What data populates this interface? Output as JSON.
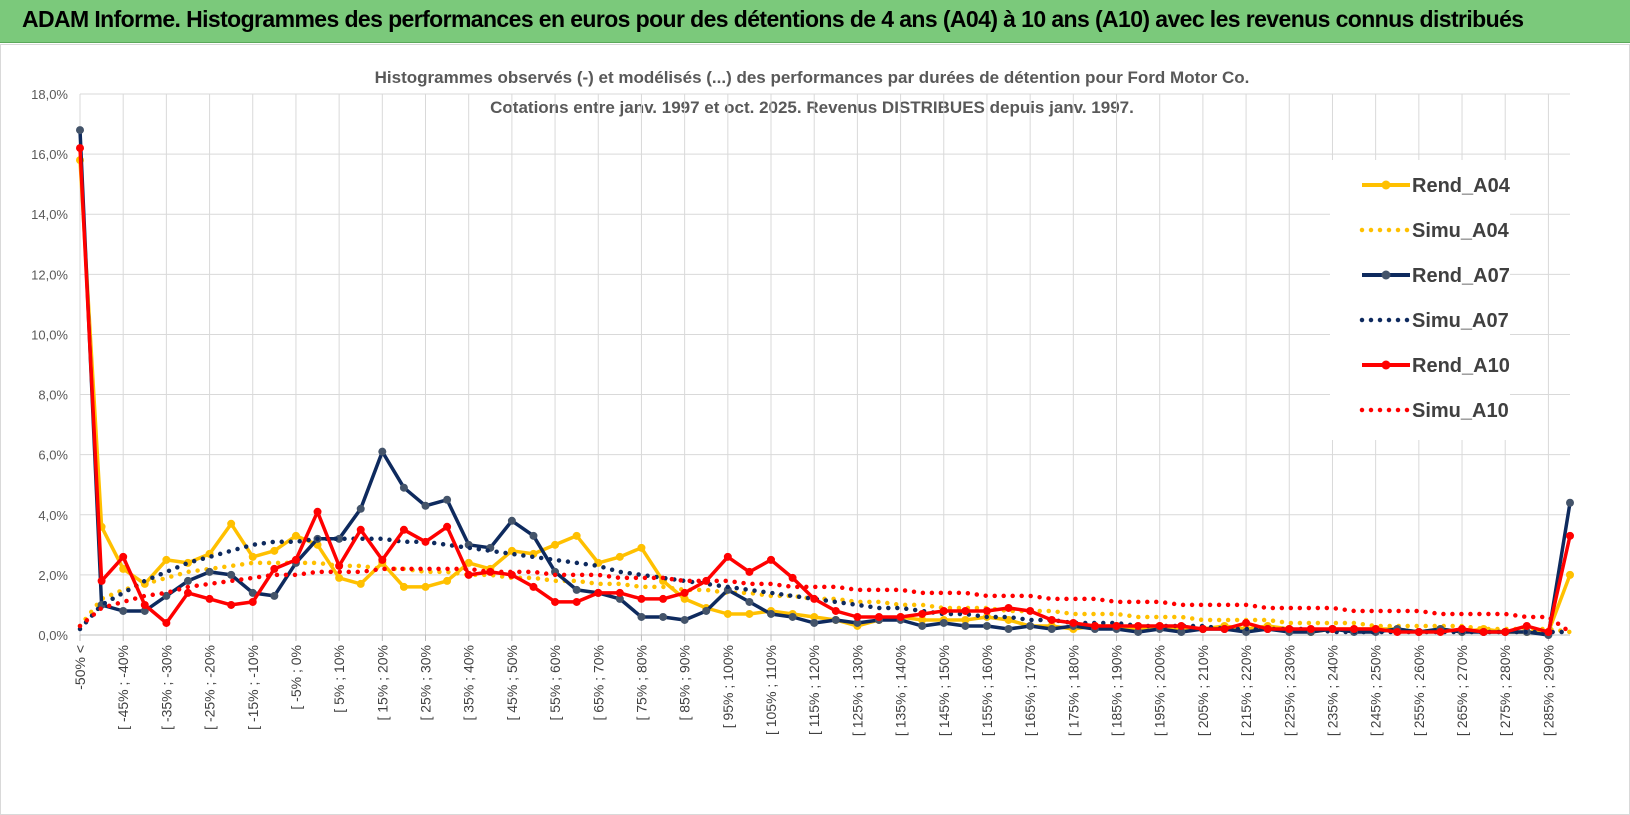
{
  "header": {
    "title": "ADAM Informe. Histogrammes des performances en euros pour des détentions de 4 ans (A04) à 10 ans (A10) avec les revenus connus distribués"
  },
  "chart_data": {
    "type": "line",
    "title": "Histogrammes observés (-) et modélisés (...) des performances par durées de détention pour Ford Motor Co.",
    "subtitle": "Cotations entre janv. 1997 et oct. 2025.  Revenus DISTRIBUES depuis janv. 1997.",
    "ylim": [
      0,
      18
    ],
    "yticks": [
      "0,0%",
      "2,0%",
      "4,0%",
      "6,0%",
      "8,0%",
      "10,0%",
      "12,0%",
      "14,0%",
      "16,0%",
      "18,0%"
    ],
    "grid": true,
    "legend_position": "right",
    "x_labels": [
      "-50% <",
      "[ -45% ; -40%",
      "[ -35% ; -30%",
      "[ -25% ; -20%",
      "[ -15% ; -10%",
      "[ -5% ; 0%",
      "[ 5% ; 10%",
      "[ 15% ; 20%",
      "[ 25% ; 30%",
      "[ 35% ; 40%",
      "[ 45% ; 50%",
      "[ 55% ; 60%",
      "[ 65% ; 70%",
      "[ 75% ; 80%",
      "[ 85% ; 90%",
      "[ 95% ; 100%",
      "[ 105% ; 110%",
      "[ 115% ; 120%",
      "[ 125% ; 130%",
      "[ 135% ; 140%",
      "[ 145% ; 150%",
      "[ 155% ; 160%",
      "[ 165% ; 170%",
      "[ 175% ; 180%",
      "[ 185% ; 190%",
      "[ 195% ; 200%",
      "[ 205% ; 210%",
      "[ 215% ; 220%",
      "[ 225% ; 230%",
      "[ 235% ; 240%",
      "[ 245% ; 250%",
      "[ 255% ; 260%",
      "[ 265% ; 270%",
      "[ 275% ; 280%",
      "[ 285% ; 290%"
    ],
    "n_points": 70,
    "series": [
      {
        "name": "Rend_A04",
        "style": "solid",
        "color": "#FFC000",
        "values": [
          15.8,
          3.6,
          2.2,
          1.7,
          2.5,
          2.4,
          2.7,
          3.7,
          2.6,
          2.8,
          3.3,
          3.0,
          1.9,
          1.7,
          2.4,
          1.6,
          1.6,
          1.8,
          2.4,
          2.2,
          2.8,
          2.7,
          3.0,
          3.3,
          2.4,
          2.6,
          2.9,
          1.8,
          1.2,
          0.9,
          0.7,
          0.7,
          0.8,
          0.7,
          0.6,
          0.5,
          0.3,
          0.5,
          0.6,
          0.5,
          0.5,
          0.5,
          0.6,
          0.5,
          0.3,
          0.3,
          0.2,
          0.3,
          0.3,
          0.2,
          0.3,
          0.2,
          0.2,
          0.3,
          0.2,
          0.3,
          0.2,
          0.1,
          0.2,
          0.2,
          0.2,
          0.2,
          0.1,
          0.2,
          0.1,
          0.2,
          0.1,
          0.1,
          0.1,
          2.0
        ]
      },
      {
        "name": "Simu_A04",
        "style": "dotted",
        "color": "#FFC000",
        "values": [
          0.3,
          1.2,
          1.5,
          1.7,
          1.9,
          2.1,
          2.2,
          2.3,
          2.4,
          2.4,
          2.4,
          2.4,
          2.3,
          2.3,
          2.2,
          2.2,
          2.1,
          2.1,
          2.0,
          2.0,
          1.9,
          1.9,
          1.8,
          1.8,
          1.7,
          1.7,
          1.6,
          1.6,
          1.5,
          1.5,
          1.4,
          1.4,
          1.3,
          1.3,
          1.2,
          1.2,
          1.1,
          1.1,
          1.0,
          1.0,
          0.9,
          0.9,
          0.9,
          0.8,
          0.8,
          0.8,
          0.7,
          0.7,
          0.7,
          0.6,
          0.6,
          0.6,
          0.5,
          0.5,
          0.5,
          0.5,
          0.4,
          0.4,
          0.4,
          0.4,
          0.3,
          0.3,
          0.3,
          0.3,
          0.3,
          0.2,
          0.2,
          0.2,
          0.2,
          0.1
        ]
      },
      {
        "name": "Rend_A07",
        "style": "solid",
        "color": "#0E2A5E",
        "values": [
          16.8,
          1.0,
          0.8,
          0.8,
          1.3,
          1.8,
          2.1,
          2.0,
          1.4,
          1.3,
          2.4,
          3.2,
          3.2,
          4.2,
          6.1,
          4.9,
          4.3,
          4.5,
          3.0,
          2.9,
          3.8,
          3.3,
          2.1,
          1.5,
          1.4,
          1.2,
          0.6,
          0.6,
          0.5,
          0.8,
          1.5,
          1.1,
          0.7,
          0.6,
          0.4,
          0.5,
          0.4,
          0.5,
          0.5,
          0.3,
          0.4,
          0.3,
          0.3,
          0.2,
          0.3,
          0.2,
          0.3,
          0.2,
          0.2,
          0.1,
          0.2,
          0.1,
          0.2,
          0.2,
          0.1,
          0.2,
          0.1,
          0.1,
          0.2,
          0.1,
          0.1,
          0.2,
          0.1,
          0.2,
          0.1,
          0.1,
          0.1,
          0.1,
          0.0,
          4.4
        ]
      },
      {
        "name": "Simu_A07",
        "style": "dotted",
        "color": "#0E2A5E",
        "values": [
          0.2,
          1.0,
          1.4,
          1.8,
          2.1,
          2.4,
          2.6,
          2.8,
          3.0,
          3.1,
          3.1,
          3.2,
          3.2,
          3.2,
          3.2,
          3.1,
          3.1,
          3.0,
          2.9,
          2.8,
          2.7,
          2.6,
          2.5,
          2.4,
          2.3,
          2.1,
          2.0,
          1.9,
          1.8,
          1.7,
          1.6,
          1.5,
          1.4,
          1.3,
          1.2,
          1.1,
          1.0,
          0.9,
          0.9,
          0.8,
          0.7,
          0.7,
          0.6,
          0.6,
          0.5,
          0.5,
          0.4,
          0.4,
          0.4,
          0.3,
          0.3,
          0.3,
          0.3,
          0.2,
          0.2,
          0.2,
          0.2,
          0.2,
          0.1,
          0.1,
          0.1,
          0.1,
          0.1,
          0.1,
          0.1,
          0.1,
          0.1,
          0.1,
          0.1,
          0.1
        ]
      },
      {
        "name": "Rend_A10",
        "style": "solid",
        "color": "#FF0000",
        "values": [
          16.2,
          1.8,
          2.6,
          1.0,
          0.4,
          1.4,
          1.2,
          1.0,
          1.1,
          2.2,
          2.5,
          4.1,
          2.3,
          3.5,
          2.5,
          3.5,
          3.1,
          3.6,
          2.0,
          2.1,
          2.0,
          1.6,
          1.1,
          1.1,
          1.4,
          1.4,
          1.2,
          1.2,
          1.4,
          1.8,
          2.6,
          2.1,
          2.5,
          1.9,
          1.2,
          0.8,
          0.6,
          0.6,
          0.6,
          0.7,
          0.8,
          0.8,
          0.8,
          0.9,
          0.8,
          0.5,
          0.4,
          0.3,
          0.3,
          0.3,
          0.3,
          0.3,
          0.2,
          0.2,
          0.4,
          0.2,
          0.2,
          0.2,
          0.2,
          0.2,
          0.2,
          0.1,
          0.1,
          0.1,
          0.2,
          0.1,
          0.1,
          0.3,
          0.1,
          3.3
        ]
      },
      {
        "name": "Simu_A10",
        "style": "dotted",
        "color": "#FF0000",
        "values": [
          0.3,
          0.9,
          1.1,
          1.3,
          1.4,
          1.6,
          1.7,
          1.8,
          1.9,
          2.0,
          2.0,
          2.1,
          2.1,
          2.1,
          2.2,
          2.2,
          2.2,
          2.2,
          2.2,
          2.1,
          2.1,
          2.1,
          2.0,
          2.0,
          2.0,
          1.9,
          1.9,
          1.9,
          1.8,
          1.8,
          1.8,
          1.7,
          1.7,
          1.6,
          1.6,
          1.6,
          1.5,
          1.5,
          1.5,
          1.4,
          1.4,
          1.4,
          1.3,
          1.3,
          1.3,
          1.2,
          1.2,
          1.2,
          1.1,
          1.1,
          1.1,
          1.0,
          1.0,
          1.0,
          1.0,
          0.9,
          0.9,
          0.9,
          0.9,
          0.8,
          0.8,
          0.8,
          0.8,
          0.7,
          0.7,
          0.7,
          0.7,
          0.6,
          0.6,
          0.1
        ]
      }
    ]
  }
}
